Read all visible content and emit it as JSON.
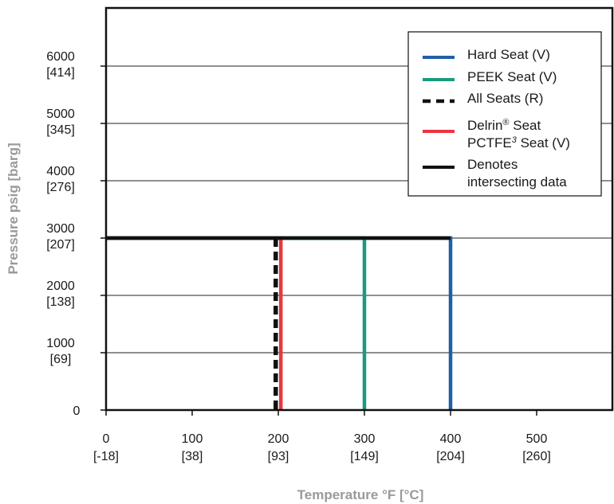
{
  "chart_data": {
    "type": "line",
    "title": "",
    "xlabel": "Temperature °F [°C]",
    "ylabel": "Pressure psig [barg]",
    "xlim": [
      0,
      585
    ],
    "ylim": [
      0,
      7000
    ],
    "grid": "horizontal",
    "legend_position": "top-right",
    "x_ticks": [
      {
        "value": 0,
        "label": "0",
        "sublabel": "[-18]"
      },
      {
        "value": 100,
        "label": "100",
        "sublabel": "[38]"
      },
      {
        "value": 200,
        "label": "200",
        "sublabel": "[93]"
      },
      {
        "value": 300,
        "label": "300",
        "sublabel": "[149]"
      },
      {
        "value": 400,
        "label": "400",
        "sublabel": "[204]"
      },
      {
        "value": 500,
        "label": "500",
        "sublabel": "[260]"
      }
    ],
    "y_ticks": [
      {
        "value": 0,
        "label": "0",
        "sublabel": ""
      },
      {
        "value": 1000,
        "label": "1000",
        "sublabel": "[69]"
      },
      {
        "value": 2000,
        "label": "2000",
        "sublabel": "[138]"
      },
      {
        "value": 3000,
        "label": "3000",
        "sublabel": "[207]"
      },
      {
        "value": 4000,
        "label": "4000",
        "sublabel": "[276]"
      },
      {
        "value": 5000,
        "label": "5000",
        "sublabel": "[345]"
      },
      {
        "value": 6000,
        "label": "6000",
        "sublabel": "[414]"
      }
    ],
    "series": [
      {
        "key": "hard",
        "color": "#1f5fa8",
        "dash": "solid",
        "points": [
          [
            0,
            3000
          ],
          [
            400,
            3000
          ],
          [
            400,
            0
          ]
        ]
      },
      {
        "key": "peek",
        "color": "#1a9a80",
        "dash": "solid",
        "points": [
          [
            0,
            3000
          ],
          [
            300,
            3000
          ],
          [
            300,
            0
          ]
        ]
      },
      {
        "key": "delrin",
        "color": "#e8363f",
        "dash": "solid",
        "points": [
          [
            0,
            3000
          ],
          [
            203,
            3000
          ],
          [
            203,
            0
          ]
        ]
      },
      {
        "key": "all",
        "color": "#111111",
        "dash": "dashed",
        "points": [
          [
            197,
            3000
          ],
          [
            197,
            0
          ]
        ]
      },
      {
        "key": "intersect",
        "color": "#111111",
        "dash": "solid",
        "points": [
          [
            0,
            3000
          ],
          [
            400,
            3000
          ]
        ]
      }
    ],
    "legend": [
      {
        "color": "#1f5fa8",
        "dash": "solid",
        "lines": [
          {
            "text": "Hard Seat (V)"
          }
        ]
      },
      {
        "color": "#1a9a80",
        "dash": "solid",
        "lines": [
          {
            "text": "PEEK Seat (V)"
          }
        ]
      },
      {
        "color": "#111111",
        "dash": "dashed",
        "lines": [
          {
            "text": "All Seats (R)"
          }
        ]
      },
      {
        "color": "#e8363f",
        "dash": "solid",
        "lines": [
          {
            "text": "Delrin",
            "sup": "®",
            "sup_italic": false,
            "after": " Seat"
          },
          {
            "text": "PCTFE",
            "sup": "3",
            "sup_italic": true,
            "after": " Seat (V)"
          }
        ]
      },
      {
        "color": "#111111",
        "dash": "solid",
        "lines": [
          {
            "text": "Denotes"
          },
          {
            "text": "intersecting data"
          }
        ]
      }
    ]
  }
}
